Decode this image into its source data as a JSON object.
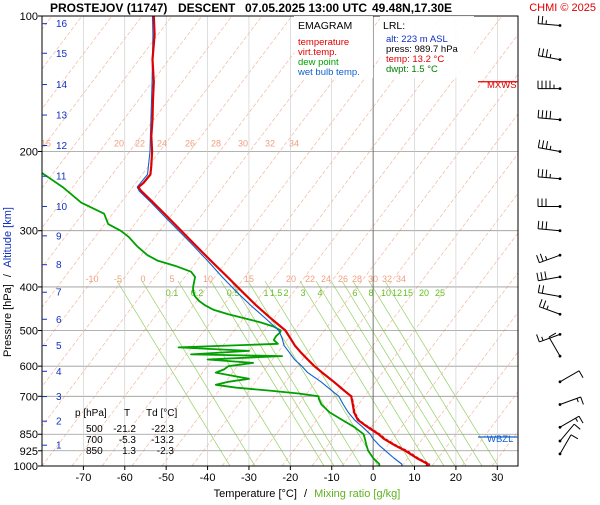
{
  "header": {
    "station": "PROSTEJOV (11747)",
    "mode": "DESCENT",
    "datetime": "07.05.2025 13:00 UTC",
    "coords": "49.48N,17.30E",
    "copyright": "CHMI © 2025"
  },
  "legend": {
    "title": "EMAGRAM",
    "items": [
      {
        "label": "temperature",
        "color": "#e00000"
      },
      {
        "label": "virt.temp.",
        "color": "#e00000"
      },
      {
        "label": "dew point",
        "color": "#00a000"
      },
      {
        "label": "wet bulb temp.",
        "color": "#1060d0"
      }
    ]
  },
  "lrl": {
    "title": "LRL:",
    "rows": [
      {
        "text": "alt: 223 m ASL",
        "color": "#1030c0"
      },
      {
        "text": "press: 989.7 hPa",
        "color": "#000000"
      },
      {
        "text": "temp: 13.2 °C",
        "color": "#e00000"
      },
      {
        "text": "dwpt: 1.5 °C",
        "color": "#008000"
      }
    ]
  },
  "axes": {
    "x_label": "Temperature [°C]",
    "x_label_sep": "/",
    "x_label2": "Mixing ratio [g/kg]",
    "y_label": "Pressure [hPa]",
    "y_label_sep": "/",
    "y_label2": "Altitude [km]"
  },
  "table": {
    "headers": [
      "p [hPa]",
      "T",
      "Td [°C]"
    ],
    "rows": [
      [
        "500",
        "-21.2",
        "-22.3"
      ],
      [
        "700",
        "-5.3",
        "-13.2"
      ],
      [
        "850",
        "1.3",
        "-2.3"
      ]
    ]
  },
  "level_labels": {
    "mxws": "MXWS",
    "wbzl": "WBZL"
  },
  "chart_data": {
    "type": "line",
    "title": "EMAGRAM",
    "xlabel": "Temperature [°C] / Mixing ratio [g/kg]",
    "ylabel": "Pressure [hPa] / Altitude [km]",
    "xlim": [
      -80,
      35
    ],
    "ylim": [
      1000,
      100
    ],
    "y_scale": "log",
    "x_ticks": [
      -70,
      -60,
      -50,
      -40,
      -30,
      -20,
      -10,
      0,
      10,
      20,
      30
    ],
    "p_ticks": [
      100,
      200,
      300,
      400,
      500,
      600,
      700,
      850,
      925,
      1000
    ],
    "altitude_ticks_km": [
      {
        "km": 1,
        "p": 899
      },
      {
        "km": 2,
        "p": 795
      },
      {
        "km": 3,
        "p": 701
      },
      {
        "km": 4,
        "p": 616
      },
      {
        "km": 5,
        "p": 540
      },
      {
        "km": 6,
        "p": 472
      },
      {
        "km": 7,
        "p": 411
      },
      {
        "km": 8,
        "p": 357
      },
      {
        "km": 9,
        "p": 308
      },
      {
        "km": 10,
        "p": 265
      },
      {
        "km": 11,
        "p": 227
      },
      {
        "km": 12,
        "p": 194
      },
      {
        "km": 13,
        "p": 166
      },
      {
        "km": 14,
        "p": 142
      },
      {
        "km": 15,
        "p": 121
      },
      {
        "km": 16,
        "p": 104
      }
    ],
    "mixing_ratio_lines": [
      "0.1",
      "0.2",
      "0.5",
      "1",
      "1.5",
      "2",
      "3",
      "4",
      "6",
      "8",
      "10",
      "12",
      "15",
      "20",
      "25"
    ],
    "dry_adiabat_labels": [
      "-10",
      "-5",
      "0",
      "5",
      "10",
      "15",
      "20",
      "22",
      "24",
      "26",
      "28",
      "30",
      "32",
      "34"
    ],
    "upper_adiabat_labels": [
      "15",
      "20",
      "22",
      "24",
      "26",
      "28",
      "30",
      "32",
      "34"
    ],
    "series": [
      {
        "name": "temperature",
        "color": "#e00000",
        "points": [
          [
            1000,
            12.9
          ],
          [
            990,
            13.2
          ],
          [
            960,
            10.5
          ],
          [
            925,
            7.8
          ],
          [
            900,
            5.3
          ],
          [
            870,
            2.6
          ],
          [
            850,
            1.3
          ],
          [
            830,
            -0.4
          ],
          [
            810,
            -2.1
          ],
          [
            790,
            -3.7
          ],
          [
            760,
            -4.6
          ],
          [
            730,
            -4.9
          ],
          [
            700,
            -5.3
          ],
          [
            680,
            -7.0
          ],
          [
            650,
            -9.5
          ],
          [
            620,
            -12.3
          ],
          [
            600,
            -14.2
          ],
          [
            580,
            -15.8
          ],
          [
            560,
            -17.4
          ],
          [
            540,
            -18.9
          ],
          [
            520,
            -20.0
          ],
          [
            500,
            -21.2
          ],
          [
            470,
            -24.7
          ],
          [
            440,
            -28.2
          ],
          [
            410,
            -31.6
          ],
          [
            380,
            -35.2
          ],
          [
            350,
            -39.2
          ],
          [
            320,
            -43.4
          ],
          [
            300,
            -46.4
          ],
          [
            280,
            -49.6
          ],
          [
            260,
            -53.1
          ],
          [
            245,
            -56.0
          ],
          [
            240,
            -56.7
          ],
          [
            235,
            -55.5
          ],
          [
            225,
            -53.8
          ],
          [
            215,
            -53.6
          ],
          [
            200,
            -53.4
          ],
          [
            185,
            -53.6
          ],
          [
            170,
            -53.3
          ],
          [
            155,
            -53.2
          ],
          [
            140,
            -53.0
          ],
          [
            125,
            -53.3
          ],
          [
            110,
            -52.8
          ],
          [
            100,
            -53.0
          ]
        ]
      },
      {
        "name": "virt.temp.",
        "color": "#e00000",
        "points": [
          [
            1000,
            13.4
          ],
          [
            990,
            13.7
          ],
          [
            960,
            10.9
          ],
          [
            925,
            8.3
          ],
          [
            900,
            5.7
          ],
          [
            870,
            3.0
          ],
          [
            850,
            1.7
          ],
          [
            830,
            0.0
          ],
          [
            810,
            -1.8
          ],
          [
            790,
            -3.4
          ],
          [
            760,
            -4.4
          ],
          [
            730,
            -4.7
          ],
          [
            700,
            -5.1
          ],
          [
            680,
            -6.9
          ],
          [
            650,
            -9.4
          ],
          [
            620,
            -12.2
          ],
          [
            600,
            -14.1
          ],
          [
            580,
            -15.7
          ],
          [
            560,
            -17.3
          ],
          [
            540,
            -18.8
          ],
          [
            520,
            -19.9
          ],
          [
            500,
            -21.1
          ],
          [
            470,
            -24.6
          ],
          [
            440,
            -28.1
          ],
          [
            410,
            -31.5
          ],
          [
            380,
            -35.1
          ],
          [
            350,
            -39.1
          ],
          [
            320,
            -43.4
          ],
          [
            300,
            -46.4
          ]
        ]
      },
      {
        "name": "dew point",
        "color": "#00a000",
        "points": [
          [
            1000,
            1.5
          ],
          [
            990,
            1.5
          ],
          [
            960,
            0.0
          ],
          [
            925,
            -1.2
          ],
          [
            900,
            -1.6
          ],
          [
            870,
            -2.0
          ],
          [
            850,
            -2.3
          ],
          [
            820,
            -4.5
          ],
          [
            790,
            -7.5
          ],
          [
            760,
            -10.5
          ],
          [
            730,
            -12.5
          ],
          [
            710,
            -13.1
          ],
          [
            700,
            -13.2
          ],
          [
            690,
            -18.0
          ],
          [
            680,
            -25.0
          ],
          [
            670,
            -33.0
          ],
          [
            660,
            -38.0
          ],
          [
            650,
            -35.0
          ],
          [
            640,
            -30.0
          ],
          [
            630,
            -34.0
          ],
          [
            620,
            -38.0
          ],
          [
            610,
            -36.0
          ],
          [
            600,
            -35.0
          ],
          [
            590,
            -29.0
          ],
          [
            580,
            -40.0
          ],
          [
            570,
            -22.0
          ],
          [
            565,
            -44.0
          ],
          [
            555,
            -30.0
          ],
          [
            545,
            -47.0
          ],
          [
            535,
            -23.0
          ],
          [
            525,
            -24.0
          ],
          [
            515,
            -23.5
          ],
          [
            505,
            -22.5
          ],
          [
            500,
            -22.3
          ],
          [
            490,
            -24.0
          ],
          [
            480,
            -27.0
          ],
          [
            470,
            -31.0
          ],
          [
            460,
            -35.0
          ],
          [
            450,
            -38.5
          ],
          [
            440,
            -40.5
          ],
          [
            430,
            -42.0
          ],
          [
            420,
            -43.0
          ],
          [
            410,
            -43.5
          ],
          [
            400,
            -43.5
          ],
          [
            380,
            -43.0
          ],
          [
            370,
            -44.0
          ],
          [
            360,
            -47.5
          ],
          [
            350,
            -52.0
          ],
          [
            340,
            -54.5
          ],
          [
            325,
            -57.0
          ],
          [
            310,
            -59.0
          ],
          [
            300,
            -61.0
          ],
          [
            290,
            -64.0
          ],
          [
            275,
            -65.0
          ],
          [
            260,
            -70.5
          ],
          [
            240,
            -75.0
          ],
          [
            220,
            -81.0
          ],
          [
            210,
            -86.0
          ]
        ]
      },
      {
        "name": "wet bulb temp.",
        "color": "#1060d0",
        "points": [
          [
            1000,
            7.0
          ],
          [
            990,
            6.9
          ],
          [
            960,
            5.0
          ],
          [
            925,
            3.0
          ],
          [
            900,
            1.5
          ],
          [
            870,
            0.0
          ],
          [
            850,
            -0.7
          ],
          [
            820,
            -2.5
          ],
          [
            790,
            -4.5
          ],
          [
            760,
            -6.0
          ],
          [
            730,
            -7.2
          ],
          [
            700,
            -8.3
          ],
          [
            680,
            -10.0
          ],
          [
            650,
            -12.6
          ],
          [
            620,
            -15.8
          ],
          [
            600,
            -17.2
          ],
          [
            580,
            -19.0
          ],
          [
            560,
            -20.2
          ],
          [
            540,
            -21.5
          ],
          [
            520,
            -22.0
          ],
          [
            500,
            -22.8
          ],
          [
            470,
            -26.0
          ],
          [
            440,
            -29.5
          ],
          [
            410,
            -33.0
          ],
          [
            380,
            -36.5
          ],
          [
            350,
            -40.0
          ],
          [
            320,
            -44.0
          ],
          [
            300,
            -47.0
          ],
          [
            280,
            -50.2
          ],
          [
            260,
            -53.6
          ],
          [
            245,
            -56.5
          ],
          [
            240,
            -57.0
          ],
          [
            225,
            -54.5
          ],
          [
            200,
            -53.9
          ],
          [
            170,
            -53.7
          ],
          [
            140,
            -53.4
          ],
          [
            110,
            -53.2
          ],
          [
            100,
            -53.3
          ]
        ]
      }
    ],
    "wind_barbs": [
      {
        "p": 105,
        "dir": 275,
        "kt": 25
      },
      {
        "p": 125,
        "dir": 280,
        "kt": 35
      },
      {
        "p": 145,
        "dir": 270,
        "kt": 45
      },
      {
        "p": 170,
        "dir": 275,
        "kt": 40
      },
      {
        "p": 200,
        "dir": 280,
        "kt": 35
      },
      {
        "p": 230,
        "dir": 275,
        "kt": 35
      },
      {
        "p": 265,
        "dir": 270,
        "kt": 30
      },
      {
        "p": 300,
        "dir": 275,
        "kt": 30
      },
      {
        "p": 340,
        "dir": 250,
        "kt": 25
      },
      {
        "p": 380,
        "dir": 260,
        "kt": 30
      },
      {
        "p": 420,
        "dir": 280,
        "kt": 20
      },
      {
        "p": 460,
        "dir": 290,
        "kt": 25
      },
      {
        "p": 510,
        "dir": 250,
        "kt": 15
      },
      {
        "p": 570,
        "dir": 330,
        "kt": 10
      },
      {
        "p": 650,
        "dir": 60,
        "kt": 10
      },
      {
        "p": 730,
        "dir": 70,
        "kt": 15
      },
      {
        "p": 820,
        "dir": 60,
        "kt": 15
      },
      {
        "p": 880,
        "dir": 40,
        "kt": 10
      },
      {
        "p": 940,
        "dir": 30,
        "kt": 10
      }
    ],
    "mxws_p": 140,
    "wbzl_p": 862
  }
}
